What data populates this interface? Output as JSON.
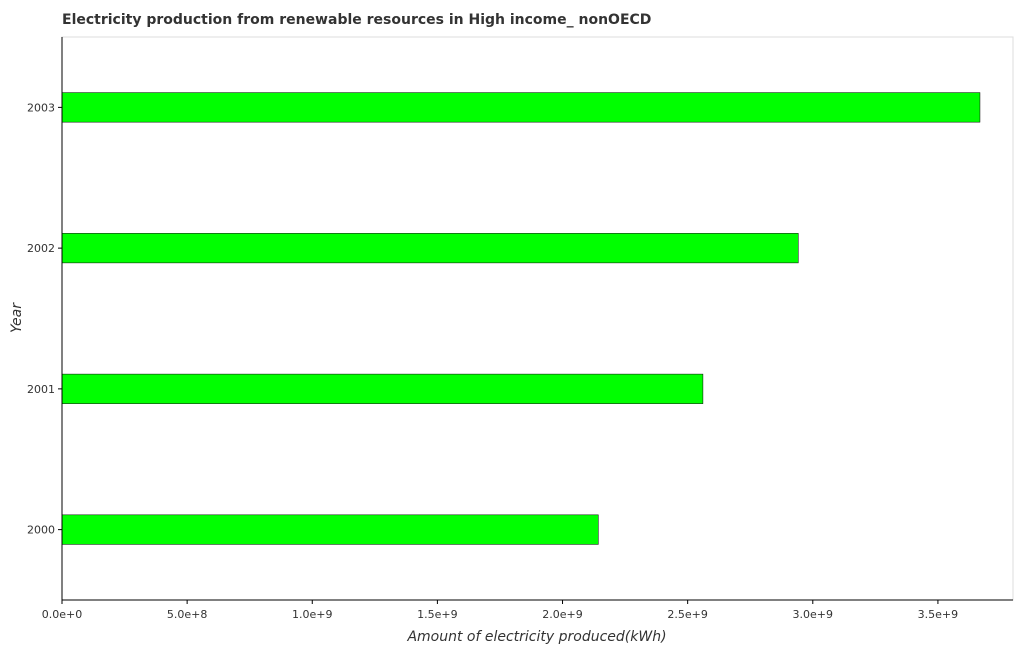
{
  "chart_data": {
    "type": "bar",
    "orientation": "horizontal",
    "title": "Electricity production from renewable resources in High income_ nonOECD",
    "xlabel": "Amount of electricity produced(kWh)",
    "ylabel": "Year",
    "categories": [
      "2000",
      "2001",
      "2002",
      "2003"
    ],
    "values": [
      2143000000,
      2561000000,
      2942000000,
      3668000000
    ],
    "xlim": [
      0,
      3800000000
    ],
    "xticks": [
      0,
      500000000,
      1000000000,
      1500000000,
      2000000000,
      2500000000,
      3000000000,
      3500000000
    ],
    "xtick_labels": [
      "0.0e+0",
      "5.0e+8",
      "1.0e+9",
      "1.5e+9",
      "2.0e+9",
      "2.5e+9",
      "3.0e+9",
      "3.5e+9"
    ],
    "bar_color": "#00ff00",
    "bar_edge_color": "#000000",
    "grid": false
  }
}
